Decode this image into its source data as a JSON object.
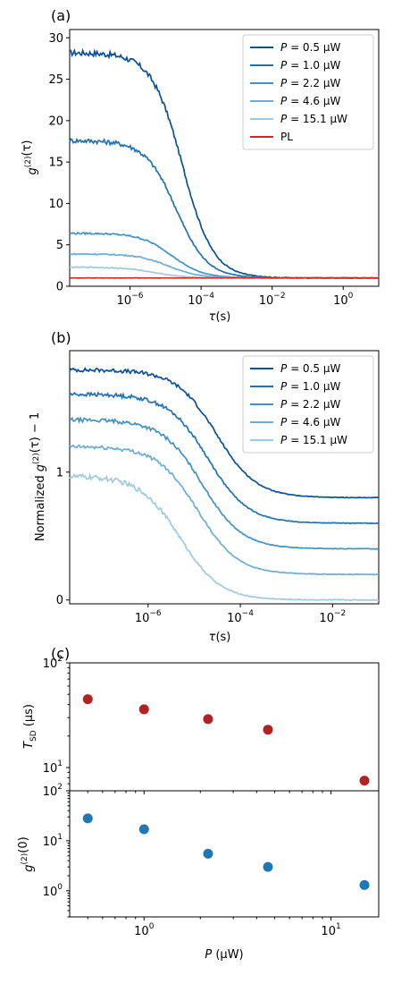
{
  "chart_data": [
    {
      "panel_label": "(a)",
      "type": "line",
      "x_scale": "log",
      "y_scale": "linear",
      "xlim": [
        2e-08,
        10
      ],
      "ylim": [
        0,
        31
      ],
      "xlabel": "τ(s)",
      "ylabel": "g(2)(τ)",
      "x_ticks": [
        {
          "value": 1e-06,
          "base": "10",
          "exp": "−6"
        },
        {
          "value": 0.0001,
          "base": "10",
          "exp": "−4"
        },
        {
          "value": 0.01,
          "base": "10",
          "exp": "−2"
        },
        {
          "value": 1,
          "base": "10",
          "exp": "0"
        }
      ],
      "y_ticks": [
        0,
        5,
        10,
        15,
        20,
        25,
        30
      ],
      "legend_position": "top-right",
      "series": [
        {
          "name": "P = 0.5 μW",
          "color": "#08519c",
          "plateau": 28.2,
          "baseline": 1.0,
          "tau": 3e-05,
          "noise": 0.35,
          "x_start": 2e-08,
          "x_end": 10
        },
        {
          "name": "P = 1.0 μW",
          "color": "#2171b5",
          "plateau": 17.6,
          "baseline": 1.0,
          "tau": 2e-05,
          "noise": 0.28,
          "x_start": 2e-08,
          "x_end": 10
        },
        {
          "name": "P = 2.2 μW",
          "color": "#4292c6",
          "plateau": 6.4,
          "baseline": 1.0,
          "tau": 1.5e-05,
          "noise": 0.1,
          "x_start": 2e-08,
          "x_end": 10
        },
        {
          "name": "P = 4.6 μW",
          "color": "#6baed6",
          "plateau": 3.9,
          "baseline": 1.0,
          "tau": 1.2e-05,
          "noise": 0.08,
          "x_start": 2e-08,
          "x_end": 10
        },
        {
          "name": "P = 15.1 μW",
          "color": "#9ecae1",
          "plateau": 2.3,
          "baseline": 1.0,
          "tau": 5e-06,
          "noise": 0.06,
          "x_start": 2e-08,
          "x_end": 10
        },
        {
          "name": "PL",
          "color": "#d62728",
          "plateau": 1.0,
          "baseline": 1.0,
          "tau": 1e-05,
          "noise": 0.02,
          "x_start": 2e-08,
          "x_end": 10
        }
      ]
    },
    {
      "panel_label": "(b)",
      "type": "line",
      "x_scale": "log",
      "y_scale": "linear",
      "xlim": [
        2e-08,
        0.1
      ],
      "ylim": [
        -0.03,
        1.95
      ],
      "xlabel": "τ(s)",
      "ylabel": "Normalized g(2)(τ) − 1",
      "x_ticks": [
        {
          "value": 1e-06,
          "base": "10",
          "exp": "−6"
        },
        {
          "value": 0.0001,
          "base": "10",
          "exp": "−4"
        },
        {
          "value": 0.01,
          "base": "10",
          "exp": "−2"
        }
      ],
      "y_ticks": [
        0,
        1
      ],
      "legend_position": "top-right",
      "series": [
        {
          "name": "P = 0.5 μW",
          "color": "#08519c",
          "plateau": 1.8,
          "baseline": 0.8,
          "tau": 3e-05,
          "noise": 0.015,
          "x_start": 2e-08,
          "x_end": 0.1
        },
        {
          "name": "P = 1.0 μW",
          "color": "#2171b5",
          "plateau": 1.61,
          "baseline": 0.6,
          "tau": 2e-05,
          "noise": 0.015,
          "x_start": 2e-08,
          "x_end": 0.1
        },
        {
          "name": "P = 2.2 μW",
          "color": "#4292c6",
          "plateau": 1.41,
          "baseline": 0.4,
          "tau": 1.5e-05,
          "noise": 0.015,
          "x_start": 2e-08,
          "x_end": 0.1
        },
        {
          "name": "P = 4.6 μW",
          "color": "#6baed6",
          "plateau": 1.2,
          "baseline": 0.2,
          "tau": 1.2e-05,
          "noise": 0.015,
          "x_start": 2e-08,
          "x_end": 0.1
        },
        {
          "name": "P = 15.1 μW",
          "color": "#9ecae1",
          "plateau": 0.97,
          "baseline": 0.0,
          "tau": 5e-06,
          "noise": 0.02,
          "x_start": 2e-08,
          "x_end": 0.1
        }
      ]
    },
    {
      "panel_label": "(c)",
      "type": "scatter",
      "x_scale": "log",
      "y_scale": "log",
      "xlim": [
        0.4,
        18
      ],
      "ylim": [
        6,
        100
      ],
      "xlabel": "",
      "ylabel": "TSD (μs)",
      "x_ticks": [],
      "y_ticks": [
        {
          "value": 100,
          "base": "10",
          "exp": "2"
        },
        {
          "value": 10,
          "base": "10",
          "exp": "1"
        }
      ],
      "series": [
        {
          "color": "#b22222",
          "x": [
            0.5,
            1.0,
            2.2,
            4.6,
            15.1
          ],
          "y": [
            45,
            36,
            29,
            23,
            7.5
          ]
        }
      ]
    },
    {
      "panel_label": "",
      "type": "scatter",
      "x_scale": "log",
      "y_scale": "log",
      "xlim": [
        0.4,
        18
      ],
      "ylim": [
        0.3,
        100
      ],
      "xlabel": "P (μW)",
      "ylabel": "g(2)(0)",
      "x_ticks": [
        {
          "value": 1,
          "base": "10",
          "exp": "0"
        },
        {
          "value": 10,
          "base": "10",
          "exp": "1"
        }
      ],
      "y_ticks": [
        {
          "value": 100,
          "base": "10",
          "exp": "2"
        },
        {
          "value": 10,
          "base": "10",
          "exp": "1"
        },
        {
          "value": 1,
          "base": "10",
          "exp": "0"
        }
      ],
      "series": [
        {
          "color": "#1f77b4",
          "x": [
            0.5,
            1.0,
            2.2,
            4.6,
            15.1
          ],
          "y": [
            28,
            17,
            5.5,
            3.0,
            1.3
          ]
        }
      ]
    }
  ]
}
